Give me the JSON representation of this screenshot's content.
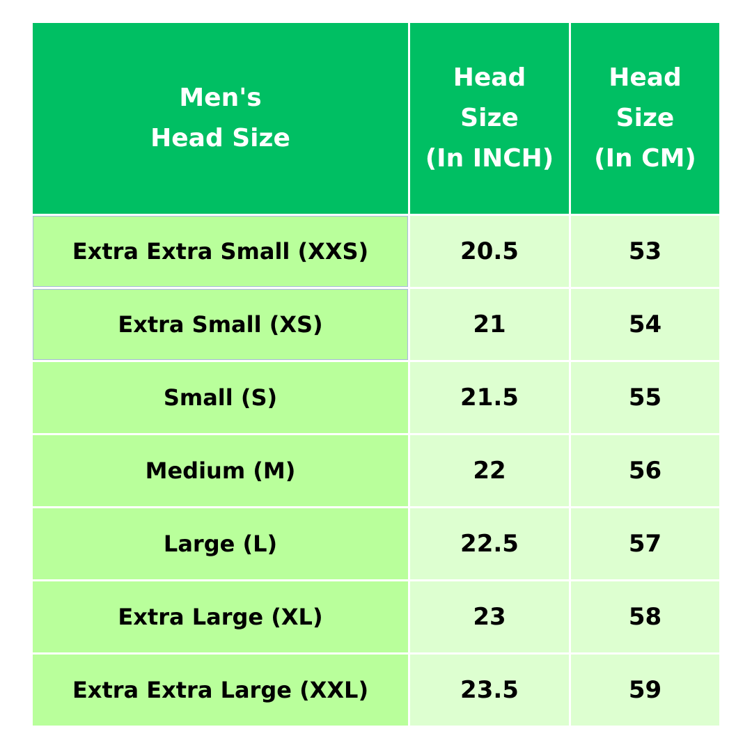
{
  "colors": {
    "header_bg": "#00bf63",
    "size_column_bg": "#b9ff9b",
    "value_column_bg": "#ddffd0"
  },
  "table": {
    "headers": [
      "Men's\nHead Size",
      "Head\nSize\n(In INCH)",
      "Head\nSize\n(In CM)"
    ],
    "rows": [
      [
        "Extra Extra Small (XXS)",
        "20.5",
        "53"
      ],
      [
        "Extra Small (XS)",
        "21",
        "54"
      ],
      [
        "Small (S)",
        "21.5",
        "55"
      ],
      [
        "Medium (M)",
        "22",
        "56"
      ],
      [
        "Large (L)",
        "22.5",
        "57"
      ],
      [
        "Extra Large (XL)",
        "23",
        "58"
      ],
      [
        "Extra Extra Large (XXL)",
        "23.5",
        "59"
      ]
    ]
  }
}
